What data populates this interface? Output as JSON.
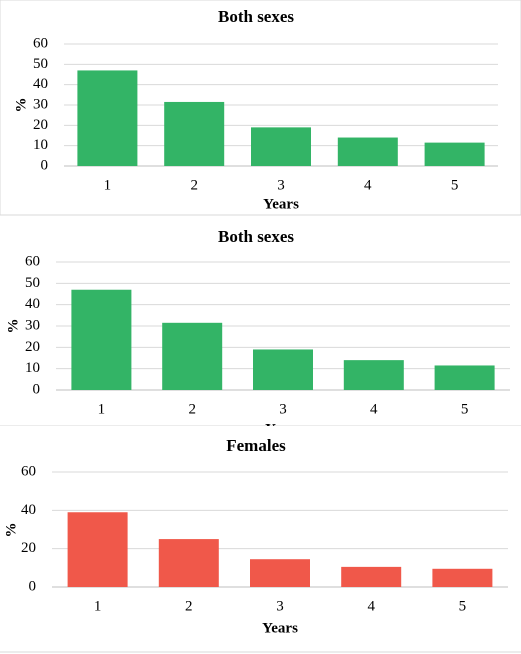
{
  "chart_data": [
    {
      "type": "bar",
      "title": "Both sexes",
      "xlabel": "Years",
      "ylabel": "%",
      "categories": [
        "1",
        "2",
        "3",
        "4",
        "5"
      ],
      "values": [
        47,
        31.5,
        19,
        14,
        11.5
      ],
      "color": "#33b466",
      "ylim": [
        0,
        60
      ],
      "yticks": [
        0,
        10,
        20,
        30,
        40,
        50,
        60
      ],
      "grid": true
    },
    {
      "type": "bar",
      "title": "Both sexes",
      "xlabel": "Years",
      "ylabel": "%",
      "categories": [
        "1",
        "2",
        "3",
        "4",
        "5"
      ],
      "values": [
        47,
        31.5,
        19,
        14,
        11.5
      ],
      "color": "#33b466",
      "ylim": [
        0,
        60
      ],
      "yticks": [
        0,
        10,
        20,
        30,
        40,
        50,
        60
      ],
      "grid": true
    },
    {
      "type": "bar",
      "title": "Females",
      "xlabel": "Years",
      "ylabel": "%",
      "categories": [
        "1",
        "2",
        "3",
        "4",
        "5"
      ],
      "values": [
        39,
        25,
        14.5,
        10.5,
        9.5
      ],
      "color": "#f0584a",
      "ylim": [
        0,
        60
      ],
      "yticks": [
        0,
        20,
        40,
        60
      ],
      "grid": true
    }
  ]
}
